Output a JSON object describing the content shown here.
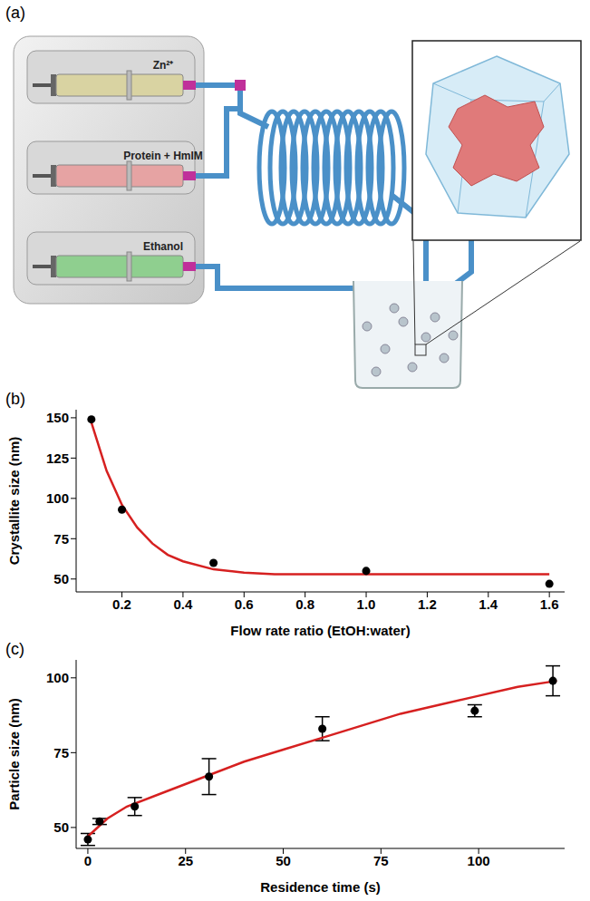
{
  "diagram": {
    "panel_label": "(a)",
    "syringes": [
      {
        "label": "Zn²⁺",
        "color": "#d9d3a2"
      },
      {
        "label": "Protein + HmIM",
        "color": "#e6a3a3"
      },
      {
        "label": "Ethanol",
        "color": "#8fcf8f"
      }
    ],
    "tube_color": "#4a90c8"
  },
  "chart_data": [
    {
      "panel_label": "(b)",
      "type": "scatter",
      "x_label": "Flow rate ratio (EtOH:water)",
      "y_label": "Crystallite size (nm)",
      "x": [
        0.1,
        0.2,
        0.5,
        1.0,
        1.6
      ],
      "values": [
        149,
        93,
        60,
        55,
        47
      ],
      "color": "#000000",
      "marker": "circle",
      "fit": {
        "x": [
          0.1,
          0.15,
          0.2,
          0.25,
          0.3,
          0.35,
          0.4,
          0.5,
          0.6,
          0.7,
          0.8,
          1.0,
          1.2,
          1.4,
          1.6
        ],
        "values": [
          147,
          117,
          96,
          82,
          72,
          65,
          61,
          56,
          54,
          53,
          53,
          53,
          53,
          53,
          53
        ],
        "color": "#d62020"
      },
      "xlim": [
        0.05,
        1.65
      ],
      "xticks": [
        0.2,
        0.4,
        0.6,
        0.8,
        {
          "value": 1,
          "label": "1.0"
        },
        1.2,
        1.4,
        1.6
      ],
      "ylim": [
        42,
        155
      ],
      "yticks": [
        50,
        75,
        100,
        125,
        150
      ],
      "grid": false
    },
    {
      "panel_label": "(c)",
      "type": "scatter",
      "x_label": "Residence time (s)",
      "y_label": "Particle size (nm)",
      "x": [
        0,
        3,
        12,
        31,
        60,
        99,
        119
      ],
      "values": [
        46,
        52,
        57,
        67,
        83,
        89,
        99
      ],
      "errors": [
        2,
        1,
        3,
        6,
        4,
        2,
        5
      ],
      "color": "#000000",
      "marker": "circle",
      "fit": {
        "x": [
          0,
          5,
          10,
          20,
          30,
          40,
          50,
          60,
          70,
          80,
          90,
          100,
          110,
          120
        ],
        "values": [
          47,
          53,
          57,
          62,
          67,
          72,
          76,
          80,
          84,
          88,
          91,
          94,
          97,
          99
        ],
        "color": "#d62020"
      },
      "xlim": [
        -3,
        122
      ],
      "xticks": [
        0,
        25,
        50,
        75,
        100
      ],
      "ylim": [
        43,
        106
      ],
      "yticks": [
        50,
        75,
        100
      ],
      "grid": false
    }
  ]
}
